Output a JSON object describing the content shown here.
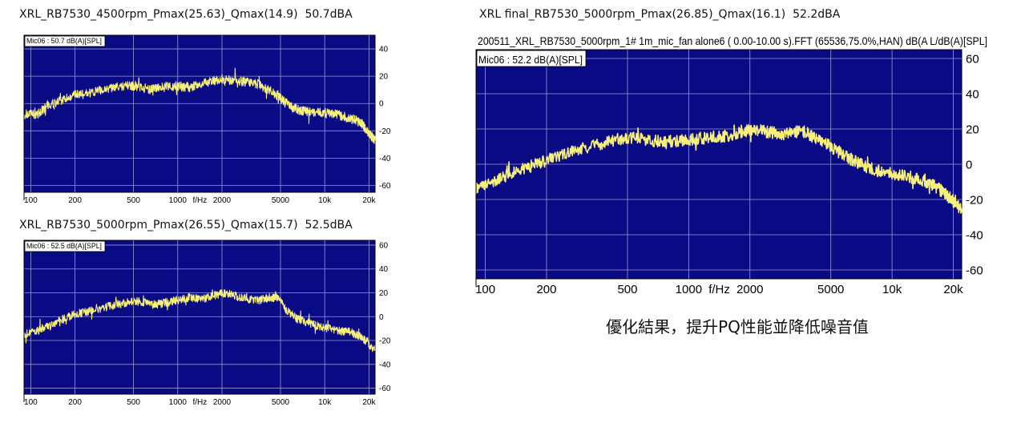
{
  "chart_data": [
    {
      "type": "line",
      "caption": "XRL_RB7530_4500rpm_Pmax(25.63)_Qmax(14.9)  50.7dBA",
      "header": "",
      "label": "Mic06 : 50.7 dB(A)[SPL]",
      "x_scale": "log",
      "xlim": [
        90,
        22000
      ],
      "ylim": [
        -65,
        50
      ],
      "x_ticks": [
        100,
        200,
        500,
        1000,
        2000,
        5000,
        10000,
        20000
      ],
      "x_tick_labels": [
        "100",
        "200",
        "500",
        "1000",
        "2000",
        "5000",
        "10k",
        "20k"
      ],
      "x_unit": "f/Hz",
      "y_ticks": [
        -60,
        -40,
        -20,
        0,
        20,
        40
      ],
      "y_tick_labels": [
        "-60",
        "-40",
        "-20",
        "0",
        "20",
        "40"
      ],
      "grid": true,
      "series": [
        {
          "color": "#f6f07a",
          "x": [
            90,
            110,
            130,
            160,
            200,
            260,
            350,
            450,
            520,
            650,
            800,
            1000,
            1200,
            1400,
            1700,
            2000,
            2400,
            2900,
            3500,
            4200,
            5000,
            5800,
            6800,
            8000,
            10000,
            12000,
            14000,
            16000,
            18000,
            20000,
            22000
          ],
          "y": [
            -8,
            -8,
            -2,
            2,
            6,
            8,
            11,
            13,
            13,
            10,
            12,
            13,
            12,
            14,
            16,
            18,
            17,
            16,
            14,
            10,
            4,
            -2,
            -5,
            -6,
            -7,
            -8,
            -10,
            -12,
            -15,
            -22,
            -27
          ]
        }
      ]
    },
    {
      "type": "line",
      "caption": "XRL_RB7530_5000rpm_Pmax(26.55)_Qmax(15.7)  52.5dBA",
      "header": "",
      "label": "Mic06 : 52.5 dB(A)[SPL]",
      "x_scale": "log",
      "xlim": [
        90,
        22000
      ],
      "ylim": [
        -65,
        64
      ],
      "x_ticks": [
        100,
        200,
        500,
        1000,
        2000,
        5000,
        10000,
        20000
      ],
      "x_tick_labels": [
        "100",
        "200",
        "500",
        "1000",
        "2000",
        "5000",
        "10k",
        "20k"
      ],
      "x_unit": "f/Hz",
      "y_ticks": [
        -60,
        -40,
        -20,
        0,
        20,
        40,
        60
      ],
      "y_tick_labels": [
        "-60",
        "-40",
        "-20",
        "0",
        "20",
        "40",
        "60"
      ],
      "grid": true,
      "series": [
        {
          "color": "#f6f07a",
          "x": [
            90,
            110,
            130,
            160,
            200,
            260,
            350,
            450,
            550,
            700,
            850,
            1000,
            1200,
            1500,
            1800,
            2100,
            2500,
            3000,
            3600,
            4200,
            4800,
            5500,
            6500,
            7800,
            9000,
            11000,
            13000,
            15000,
            17000,
            19000,
            22000
          ],
          "y": [
            -15,
            -12,
            -8,
            -3,
            2,
            5,
            9,
            12,
            13,
            10,
            12,
            14,
            16,
            15,
            18,
            20,
            17,
            15,
            14,
            16,
            16,
            5,
            -2,
            -5,
            -8,
            -10,
            -12,
            -13,
            -16,
            -20,
            -28
          ]
        }
      ]
    },
    {
      "type": "line",
      "caption": "XRL final_RB7530_5000rpm_Pmax(26.85)_Qmax(16.1)  52.2dBA",
      "header": "200511_XRL_RB7530_5000rpm_1# 1m_mic_fan alone6 ( 0.00-10.00 s).FFT (65536,75.0%,HAN) dB(A L/dB(A)[SPL]",
      "label": "Mic06 : 52.2 dB(A)[SPL]",
      "x_scale": "log",
      "xlim": [
        90,
        22000
      ],
      "ylim": [
        -65,
        65
      ],
      "x_ticks": [
        100,
        200,
        500,
        1000,
        2000,
        5000,
        10000,
        20000
      ],
      "x_tick_labels": [
        "100",
        "200",
        "500",
        "1000",
        "2000",
        "5000",
        "10k",
        "20k"
      ],
      "x_unit": "f/Hz",
      "y_ticks": [
        -60,
        -40,
        -20,
        0,
        20,
        40,
        60
      ],
      "y_tick_labels": [
        "-60",
        "-40",
        "-20",
        "0",
        "20",
        "40",
        "60"
      ],
      "grid": true,
      "series": [
        {
          "color": "#f6f07a",
          "x": [
            90,
            110,
            130,
            160,
            200,
            260,
            350,
            450,
            550,
            700,
            850,
            1000,
            1200,
            1500,
            1800,
            2100,
            2500,
            3000,
            3600,
            4200,
            5000,
            6000,
            7000,
            8000,
            10000,
            12000,
            14000,
            16000,
            18000,
            20000,
            22000
          ],
          "y": [
            -13,
            -10,
            -6,
            -2,
            2,
            7,
            11,
            14,
            15,
            13,
            13,
            14,
            15,
            16,
            18,
            20,
            18,
            17,
            19,
            15,
            10,
            4,
            0,
            -3,
            -5,
            -7,
            -9,
            -12,
            -16,
            -21,
            -26
          ]
        }
      ]
    }
  ],
  "note": "優化結果，提升PQ性能並降低噪音值"
}
